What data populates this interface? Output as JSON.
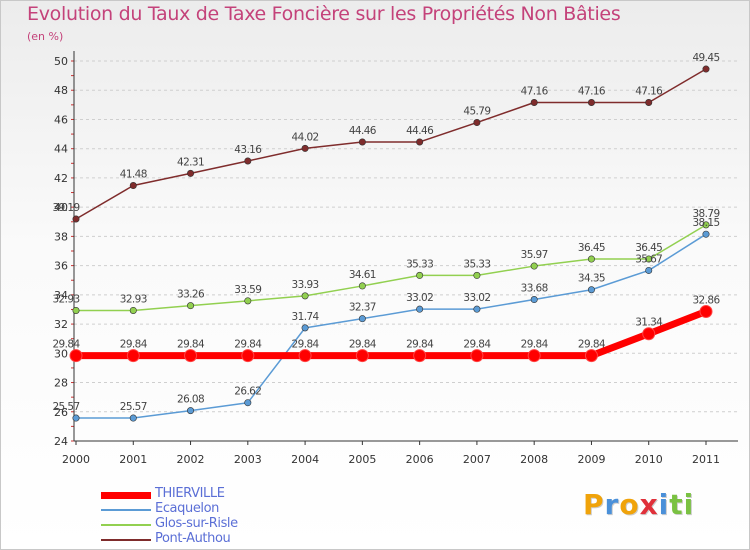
{
  "chart_data": {
    "type": "line",
    "title": "Evolution du Taux de Taxe Foncière sur les Propriétés Non Bâties",
    "subtitle": "(en %)",
    "x": [
      "2000",
      "2001",
      "2002",
      "2003",
      "2004",
      "2005",
      "2006",
      "2007",
      "2008",
      "2009",
      "2010",
      "2011"
    ],
    "ylim": [
      24,
      50
    ],
    "yticks": [
      24,
      26,
      28,
      30,
      32,
      34,
      36,
      38,
      40,
      42,
      44,
      46,
      48,
      50
    ],
    "grid": "horizontal dashed",
    "legend_position": "bottom-left",
    "series": [
      {
        "name": "THIERVILLE",
        "color": "#ff0000",
        "line_width": "thick",
        "values": [
          29.84,
          29.84,
          29.84,
          29.84,
          29.84,
          29.84,
          29.84,
          29.84,
          29.84,
          29.84,
          31.34,
          32.86
        ],
        "labels": [
          "29.84",
          "29.84",
          "29.84",
          "29.84",
          "29.84",
          "29.84",
          "29.84",
          "29.84",
          "29.84",
          "29.84",
          "31.34",
          "32.86"
        ]
      },
      {
        "name": "Ecaquelon",
        "color": "#5b9bd5",
        "line_width": "thin",
        "values": [
          25.57,
          25.57,
          26.08,
          26.62,
          31.74,
          32.37,
          33.02,
          33.02,
          33.68,
          34.35,
          35.67,
          38.15
        ],
        "labels": [
          "25.57",
          "25.57",
          "26.08",
          "26.62",
          "31.74",
          "32.37",
          "33.02",
          "33.02",
          "33.68",
          "34.35",
          "35.67",
          "38.15"
        ]
      },
      {
        "name": "Glos-sur-Risle",
        "color": "#92d050",
        "line_width": "thin",
        "values": [
          32.93,
          32.93,
          33.26,
          33.59,
          33.93,
          34.61,
          35.33,
          35.33,
          35.97,
          36.45,
          36.45,
          38.79
        ],
        "labels": [
          "32.93",
          "32.93",
          "33.26",
          "33.59",
          "33.93",
          "34.61",
          "35.33",
          "35.33",
          "35.97",
          "36.45",
          "36.45",
          "38.79"
        ]
      },
      {
        "name": "Pont-Authou",
        "color": "#7f2c2c",
        "line_width": "thin",
        "values": [
          39.19,
          41.48,
          42.31,
          43.16,
          44.02,
          44.46,
          44.46,
          45.79,
          47.16,
          47.16,
          47.16,
          49.45
        ],
        "labels": [
          "39.19",
          "41.48",
          "42.31",
          "43.16",
          "44.02",
          "44.46",
          "44.46",
          "45.79",
          "47.16",
          "47.16",
          "47.16",
          "49.45"
        ]
      }
    ]
  },
  "logo": {
    "letters": [
      "P",
      "r",
      "o",
      "x",
      "i",
      "t",
      "i"
    ],
    "colors": [
      "#f0a30a",
      "#4a90d9",
      "#f0a30a",
      "#e0303a",
      "#4a90d9",
      "#7ac142",
      "#7ac142"
    ]
  }
}
